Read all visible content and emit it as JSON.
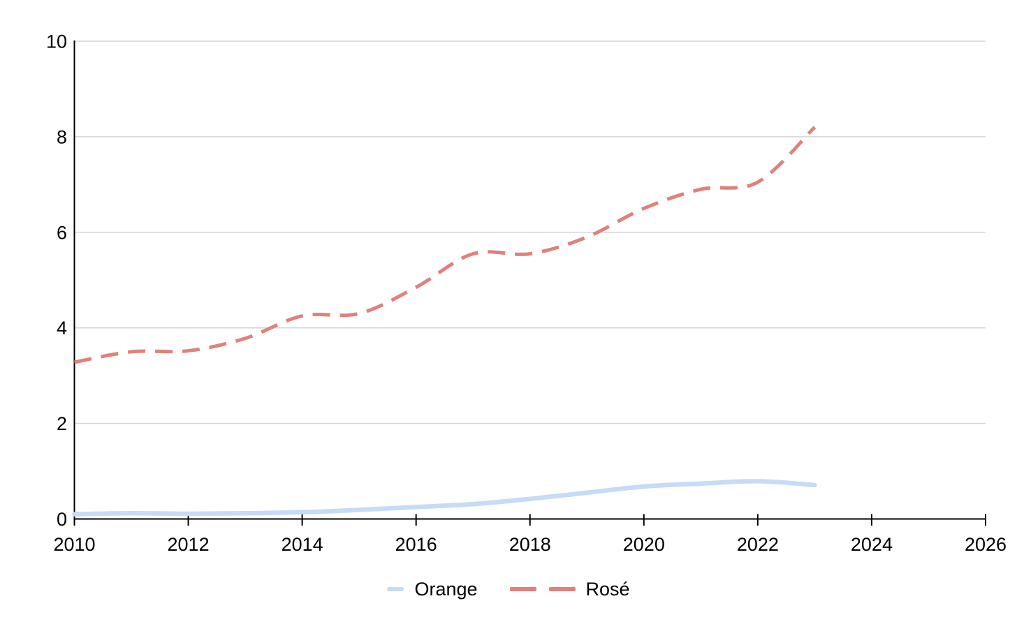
{
  "chart_data": {
    "type": "line",
    "title": "",
    "xlabel": "",
    "ylabel": "",
    "x": [
      2010,
      2011,
      2012,
      2013,
      2014,
      2015,
      2016,
      2017,
      2018,
      2019,
      2020,
      2021,
      2022,
      2023
    ],
    "series": [
      {
        "id": "orange",
        "name": "Orange",
        "color": "#c6dbf5",
        "line_style": "solid",
        "values": [
          0.1,
          0.12,
          0.11,
          0.12,
          0.14,
          0.19,
          0.25,
          0.31,
          0.42,
          0.55,
          0.68,
          0.74,
          0.79,
          0.71
        ]
      },
      {
        "id": "rose",
        "name": "Rosé",
        "color": "#e0817c",
        "line_style": "dashed",
        "values": [
          3.28,
          3.5,
          3.52,
          3.78,
          4.25,
          4.3,
          4.85,
          5.55,
          5.55,
          5.9,
          6.5,
          6.9,
          7.05,
          8.2
        ]
      }
    ],
    "xlim": [
      2010,
      2026
    ],
    "ylim": [
      0,
      10
    ],
    "xticks": [
      2010,
      2012,
      2014,
      2016,
      2018,
      2020,
      2022,
      2024,
      2026
    ],
    "yticks": [
      0,
      2,
      4,
      6,
      8,
      10
    ],
    "grid": "horizontal-only",
    "legend_position": "bottom-center"
  },
  "legend": {
    "items": [
      {
        "label": "Orange"
      },
      {
        "label": "Rosé"
      }
    ]
  },
  "colors": {
    "grid": "#d4d4d4",
    "axis": "#000000",
    "tick_text": "#000000",
    "background": "#ffffff"
  }
}
